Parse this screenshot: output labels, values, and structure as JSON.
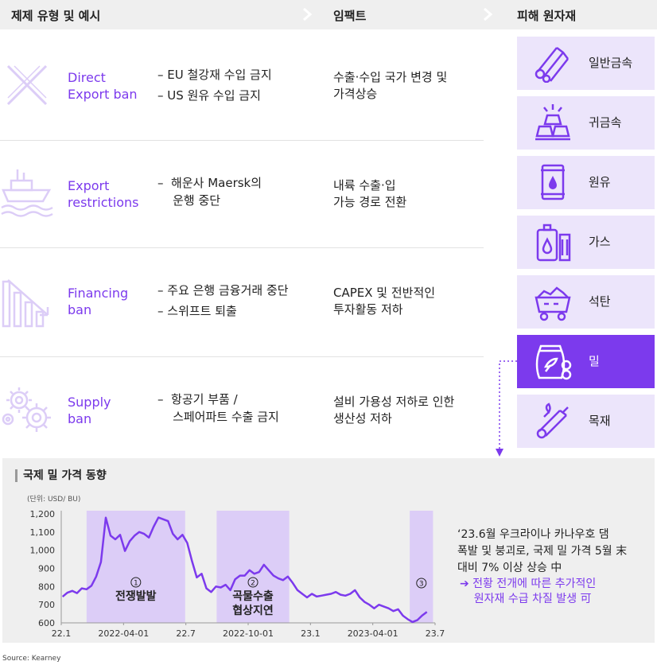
{
  "header": {
    "col1": "제제 유형 및 예시",
    "col2": "임팩트",
    "col3": "피해 원자재"
  },
  "sanctions": [
    {
      "name_line1": "Direct",
      "name_line2": "Export ban",
      "examples": [
        "–  EU 철강재 수입 금지",
        "–  US 원유 수입 금지"
      ],
      "impact_line1": "수출·수입 국가 변경 및",
      "impact_line2": "가격상승",
      "icon": "x-cross-icon"
    },
    {
      "name_line1": "Export",
      "name_line2": "restrictions",
      "examples": [
        "–  해운사 Maersk의",
        "    운행 중단"
      ],
      "impact_line1": "내륙 수출·입",
      "impact_line2": "가능 경로 전환",
      "icon": "ship-icon"
    },
    {
      "name_line1": "Financing",
      "name_line2": "ban",
      "examples": [
        "–  주요 은행 금융거래 중단",
        "–  스위프트 퇴출"
      ],
      "impact_line1": "CAPEX 및 전반적인",
      "impact_line2": "투자활동 저하",
      "icon": "declining-bars-icon"
    },
    {
      "name_line1": "Supply",
      "name_line2": "ban",
      "examples": [
        "–  항공기 부품 /",
        "    스페어파트 수출 금지"
      ],
      "impact_line1": "설비 가용성 저하로 인한",
      "impact_line2": "생산성 저하",
      "icon": "gears-icon"
    }
  ],
  "materials": [
    {
      "label": "일반금속",
      "icon": "metal-pipes-icon",
      "active": false
    },
    {
      "label": "귀금속",
      "icon": "gold-bars-icon",
      "active": false
    },
    {
      "label": "원유",
      "icon": "oil-barrel-icon",
      "active": false
    },
    {
      "label": "가스",
      "icon": "gas-tank-icon",
      "active": false
    },
    {
      "label": "석탄",
      "icon": "coal-cart-icon",
      "active": false
    },
    {
      "label": "밀",
      "icon": "wheat-bag-icon",
      "active": true
    },
    {
      "label": "목재",
      "icon": "wood-logs-icon",
      "active": false
    }
  ],
  "colors": {
    "accent": "#7c3aed",
    "accent_light": "#ece5fb",
    "band": "#dccdf7"
  },
  "chart_data": {
    "type": "line",
    "title": "국제 밀 가격 동향",
    "unit": "(단위: USD/ BU)",
    "ylim": [
      600,
      1200
    ],
    "yticks": [
      "600",
      "700",
      "800",
      "900",
      "1,000",
      "1,100",
      "1,200"
    ],
    "xlabels": [
      "22.1",
      "2022-04-01",
      "22.7",
      "2022-10-01",
      "23.1",
      "2023-04-01",
      "23.7"
    ],
    "x_start": "2022-01-01",
    "x_end": "2023-07-01",
    "grid": false,
    "series": [
      {
        "values": [
          [
            "2022-01-03",
            744
          ],
          [
            "2022-01-10",
            766
          ],
          [
            "2022-01-17",
            776
          ],
          [
            "2022-01-24",
            764
          ],
          [
            "2022-01-31",
            790
          ],
          [
            "2022-02-07",
            785
          ],
          [
            "2022-02-14",
            804
          ],
          [
            "2022-02-21",
            855
          ],
          [
            "2022-02-28",
            935
          ],
          [
            "2022-03-07",
            1179
          ],
          [
            "2022-03-14",
            1080
          ],
          [
            "2022-03-21",
            1060
          ],
          [
            "2022-03-28",
            1085
          ],
          [
            "2022-04-04",
            996
          ],
          [
            "2022-04-11",
            1050
          ],
          [
            "2022-04-18",
            1080
          ],
          [
            "2022-04-25",
            1100
          ],
          [
            "2022-05-02",
            1090
          ],
          [
            "2022-05-09",
            1070
          ],
          [
            "2022-05-16",
            1130
          ],
          [
            "2022-05-23",
            1180
          ],
          [
            "2022-05-30",
            1170
          ],
          [
            "2022-06-06",
            1160
          ],
          [
            "2022-06-13",
            1090
          ],
          [
            "2022-06-20",
            1060
          ],
          [
            "2022-06-27",
            1085
          ],
          [
            "2022-07-04",
            1040
          ],
          [
            "2022-07-11",
            940
          ],
          [
            "2022-07-18",
            850
          ],
          [
            "2022-07-25",
            870
          ],
          [
            "2022-08-01",
            790
          ],
          [
            "2022-08-08",
            770
          ],
          [
            "2022-08-15",
            800
          ],
          [
            "2022-08-22",
            795
          ],
          [
            "2022-08-29",
            810
          ],
          [
            "2022-09-05",
            780
          ],
          [
            "2022-09-12",
            840
          ],
          [
            "2022-09-19",
            860
          ],
          [
            "2022-09-26",
            860
          ],
          [
            "2022-10-03",
            890
          ],
          [
            "2022-10-10",
            870
          ],
          [
            "2022-10-17",
            880
          ],
          [
            "2022-10-24",
            920
          ],
          [
            "2022-10-31",
            890
          ],
          [
            "2022-11-07",
            860
          ],
          [
            "2022-11-14",
            845
          ],
          [
            "2022-11-21",
            835
          ],
          [
            "2022-11-28",
            855
          ],
          [
            "2022-12-05",
            820
          ],
          [
            "2022-12-12",
            780
          ],
          [
            "2022-12-19",
            760
          ],
          [
            "2022-12-26",
            740
          ],
          [
            "2023-01-02",
            760
          ],
          [
            "2023-01-09",
            745
          ],
          [
            "2023-01-16",
            750
          ],
          [
            "2023-01-23",
            755
          ],
          [
            "2023-01-30",
            760
          ],
          [
            "2023-02-06",
            770
          ],
          [
            "2023-02-13",
            755
          ],
          [
            "2023-02-20",
            750
          ],
          [
            "2023-02-27",
            760
          ],
          [
            "2023-03-06",
            780
          ],
          [
            "2023-03-13",
            740
          ],
          [
            "2023-03-20",
            715
          ],
          [
            "2023-03-27",
            700
          ],
          [
            "2023-04-03",
            680
          ],
          [
            "2023-04-10",
            700
          ],
          [
            "2023-04-17",
            690
          ],
          [
            "2023-04-24",
            680
          ],
          [
            "2023-05-01",
            665
          ],
          [
            "2023-05-08",
            675
          ],
          [
            "2023-05-15",
            640
          ],
          [
            "2023-05-22",
            620
          ],
          [
            "2023-05-29",
            605
          ],
          [
            "2023-06-05",
            615
          ],
          [
            "2023-06-12",
            640
          ],
          [
            "2023-06-19",
            660
          ]
        ]
      }
    ],
    "bands": [
      {
        "start": "2022-02-07",
        "end": "2022-07-01",
        "num": "1",
        "label_line1": "전쟁발발",
        "label_line2": ""
      },
      {
        "start": "2022-08-16",
        "end": "2022-11-30",
        "num": "2",
        "label_line1": "곡물수출",
        "label_line2": "협상지연"
      },
      {
        "start": "2023-05-25",
        "end": "2023-06-28",
        "num": "3",
        "label_line1": "",
        "label_line2": ""
      }
    ]
  },
  "note": {
    "line1": "‘23.6월 우크라이나 카나우호 댐",
    "line2": "폭발 및 붕괴로, 국제 밀 가격 5월 末",
    "line3": "대비 7% 이상 상승 中",
    "impact_line1": "➔ 전황 전개에 따른 추가적인",
    "impact_line2": "    원자재 수급 차질 발생 可"
  },
  "source": "Source: Kearney"
}
